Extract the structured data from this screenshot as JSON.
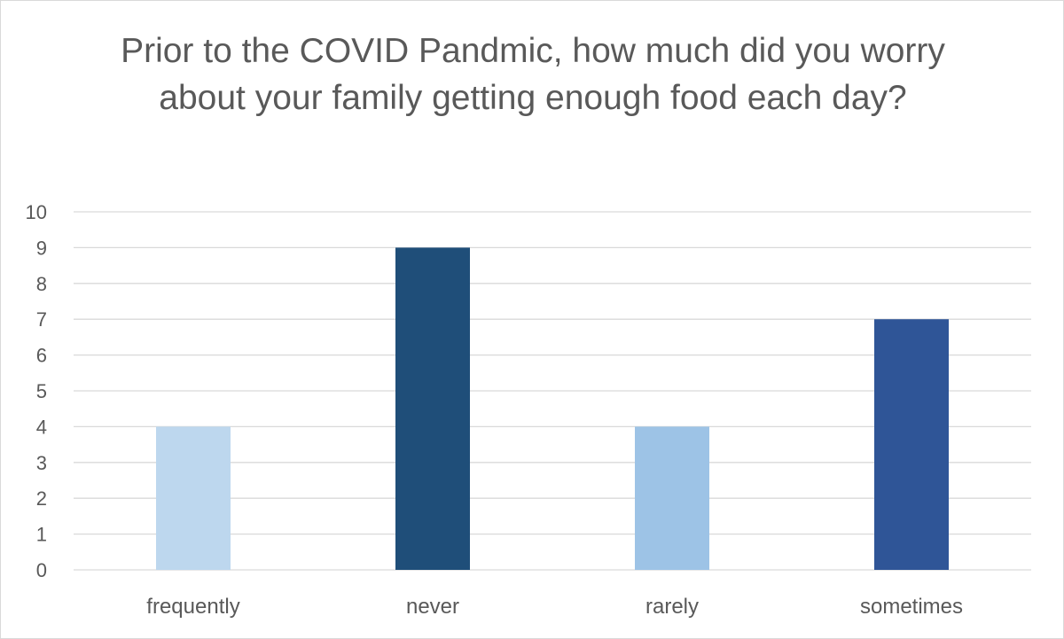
{
  "chart_data": {
    "type": "bar",
    "title": "Prior to the COVID Pandmic, how much did you worry about your family getting enough food each day?",
    "categories": [
      "frequently",
      "never",
      "rarely",
      "sometimes"
    ],
    "values": [
      4,
      9,
      4,
      7
    ],
    "colors": [
      "#bdd7ee",
      "#1f4e79",
      "#9dc3e6",
      "#2f5597"
    ],
    "xlabel": "",
    "ylabel": "",
    "ylim": [
      0,
      10
    ],
    "yticks": [
      0,
      1,
      2,
      3,
      4,
      5,
      6,
      7,
      8,
      9,
      10
    ],
    "grid": true,
    "legend": "none"
  }
}
